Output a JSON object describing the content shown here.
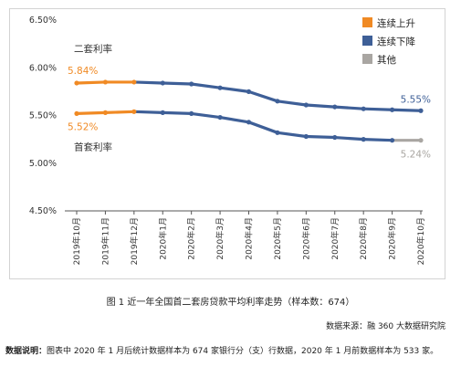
{
  "chart_data": {
    "type": "line",
    "ylim": [
      4.5,
      6.5
    ],
    "yticks": [
      "4.50%",
      "5.00%",
      "5.50%",
      "6.00%",
      "6.50%"
    ],
    "categories": [
      "2019年10月",
      "2019年11月",
      "2019年12月",
      "2020年1月",
      "2020年2月",
      "2020年3月",
      "2020年4月",
      "2020年5月",
      "2020年6月",
      "2020年7月",
      "2020年8月",
      "2020年9月",
      "2020年10月"
    ],
    "series": [
      {
        "name": "二套利率",
        "values": [
          5.84,
          5.85,
          5.85,
          5.84,
          5.83,
          5.79,
          5.75,
          5.65,
          5.61,
          5.59,
          5.57,
          5.56,
          5.55
        ]
      },
      {
        "name": "首套利率",
        "values": [
          5.52,
          5.53,
          5.54,
          5.53,
          5.52,
          5.48,
          5.43,
          5.32,
          5.28,
          5.27,
          5.25,
          5.24,
          5.24
        ]
      }
    ],
    "segment_colors": {
      "rising": "#f08a24",
      "falling": "#3e5f97",
      "flat": "#a9a6a2"
    },
    "rising_until_index": 2,
    "flat_from_index": 11,
    "flat_series_index": 1,
    "annotations": [
      {
        "text": "5.84%",
        "series": 0,
        "index": 0,
        "color": "#f08a24"
      },
      {
        "text": "5.52%",
        "series": 1,
        "index": 0,
        "color": "#f08a24"
      },
      {
        "text": "5.55%",
        "series": 0,
        "index": 12,
        "color": "#3e5f97"
      },
      {
        "text": "5.24%",
        "series": 1,
        "index": 12,
        "color": "#a9a6a2"
      }
    ],
    "series_labels": [
      {
        "text": "二套利率",
        "series": 0
      },
      {
        "text": "首套利率",
        "series": 1
      }
    ],
    "legend": {
      "position": "top-right",
      "entries": [
        {
          "label": "连续上升",
          "color": "#f08a24"
        },
        {
          "label": "连续下降",
          "color": "#3e5f97"
        },
        {
          "label": "其他",
          "color": "#a9a6a2"
        }
      ]
    }
  },
  "caption": "图 1  近一年全国首二套房贷款平均利率走势（样本数：674）",
  "source": "数据来源：融 360 大数据研究院",
  "note_label": "数据说明：",
  "note_text": "图表中 2020 年 1 月后统计数据样本为 674 家银行分（支）行数据，2020 年 1 月前数据样本为 533 家。"
}
